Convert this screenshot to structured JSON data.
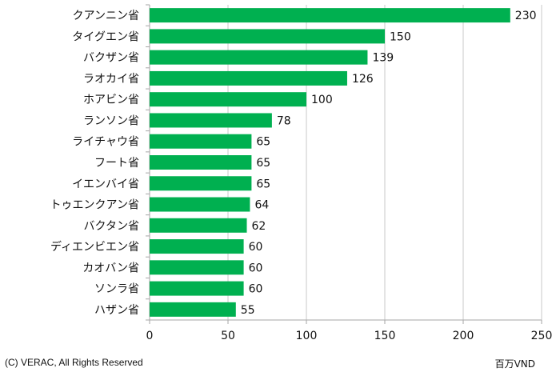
{
  "chart_data": {
    "type": "bar",
    "orientation": "horizontal",
    "categories": [
      "クアンニン省",
      "タイグエン省",
      "バクザン省",
      "ラオカイ省",
      "ホアビン省",
      "ランソン省",
      "ライチャウ省",
      "フート省",
      "イエンバイ省",
      "トゥエンクアン省",
      "バクタン省",
      "ディエンビエン省",
      "カオバン省",
      "ソンラ省",
      "ハザン省"
    ],
    "values": [
      230,
      150,
      139,
      126,
      100,
      78,
      65,
      65,
      65,
      64,
      62,
      60,
      60,
      60,
      55
    ],
    "xlim": [
      0,
      250
    ],
    "xticks": [
      "0",
      "50",
      "100",
      "150",
      "200",
      "250"
    ],
    "grid": true,
    "bar_color": "#00b050",
    "unit": "百万VND"
  },
  "footer": {
    "copyright": "(C) VERAC, All Rights Reserved",
    "unit_label": "百万VND"
  }
}
